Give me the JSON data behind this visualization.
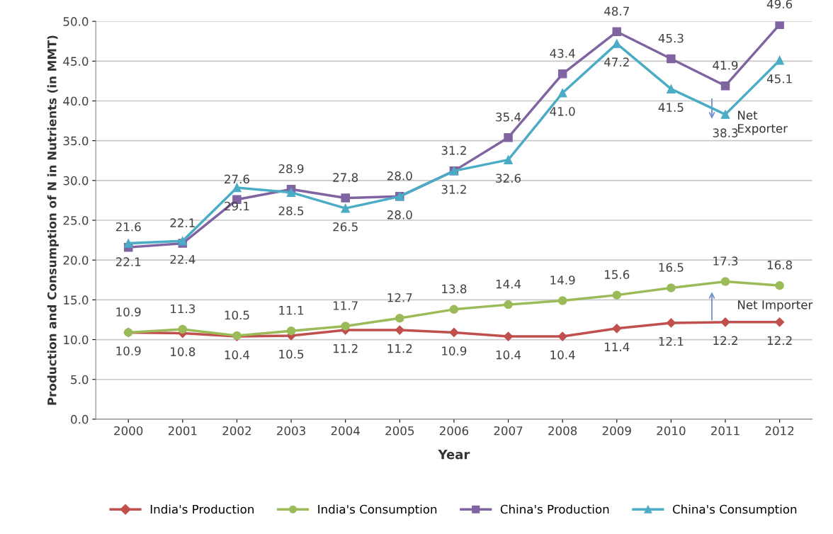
{
  "chart_data": {
    "type": "line",
    "xlabel": "Year",
    "ylabel": "Production and Consumption of N in Nutrients (in MMT)",
    "categories": [
      "2000",
      "2001",
      "2002",
      "2003",
      "2004",
      "2005",
      "2006",
      "2007",
      "2008",
      "2009",
      "2010",
      "2011",
      "2012"
    ],
    "series": [
      {
        "name": "India's Production",
        "color": "#c0504d",
        "marker": "diamond",
        "values": [
          10.9,
          10.8,
          10.4,
          10.5,
          11.2,
          11.2,
          10.9,
          10.4,
          10.4,
          11.4,
          12.1,
          12.2,
          12.2
        ],
        "value_labels": [
          "10.9",
          "10.8",
          "10.4",
          "10.5",
          "11.2",
          "11.2",
          "10.9",
          "10.4",
          "10.4",
          "11.4",
          "12.1",
          "12.2",
          "12.2"
        ]
      },
      {
        "name": "India's Consumption",
        "color": "#9bbb59",
        "marker": "circle",
        "values": [
          10.9,
          11.3,
          10.5,
          11.1,
          11.7,
          12.7,
          13.8,
          14.4,
          14.9,
          15.6,
          16.5,
          17.3,
          16.8
        ],
        "value_labels": [
          "10.9",
          "11.3",
          "10.5",
          "11.1",
          "11.7",
          "12.7",
          "13.8",
          "14.4",
          "14.9",
          "15.6",
          "16.5",
          "17.3",
          "16.8"
        ]
      },
      {
        "name": "China's Production",
        "color": "#8064a2",
        "marker": "square",
        "values": [
          21.6,
          22.1,
          27.6,
          28.9,
          27.8,
          28.0,
          31.2,
          35.4,
          43.4,
          48.7,
          45.3,
          41.9,
          49.6
        ],
        "value_labels": [
          "21.6",
          "22.1",
          "27.6",
          "28.9",
          "27.8",
          "28.0",
          "31.2",
          "35.4",
          "43.4",
          "48.7",
          "45.3",
          "41.9",
          "49.6"
        ]
      },
      {
        "name": "China's Consumption",
        "color": "#4bacc6",
        "marker": "triangle",
        "values": [
          22.1,
          22.4,
          29.1,
          28.5,
          26.5,
          28.0,
          31.2,
          32.6,
          41.0,
          47.2,
          41.5,
          38.3,
          45.1
        ],
        "value_labels": [
          "22.1",
          "22.4",
          "29.1",
          "28.5",
          "26.5",
          "28.0",
          "31.2",
          "32.6",
          "41.0",
          "47.2",
          "41.5",
          "38.3",
          "45.1"
        ]
      }
    ],
    "ylim": [
      0,
      50
    ],
    "yticks": [
      {
        "value": 0,
        "label": "0.0"
      },
      {
        "value": 5,
        "label": "5.0"
      },
      {
        "value": 10,
        "label": "10.0"
      },
      {
        "value": 15,
        "label": "15.0"
      },
      {
        "value": 20,
        "label": "20.0"
      },
      {
        "value": 25,
        "label": "25.0"
      },
      {
        "value": 30,
        "label": "30.0"
      },
      {
        "value": 35,
        "label": "35.0"
      },
      {
        "value": 40,
        "label": "40.0"
      },
      {
        "value": 45,
        "label": "45.0"
      },
      {
        "value": 50,
        "label": "50.0"
      }
    ],
    "grid": "y",
    "legend": "bottom",
    "annotations": [
      "Net\nExporter",
      "Net Importer"
    ]
  }
}
